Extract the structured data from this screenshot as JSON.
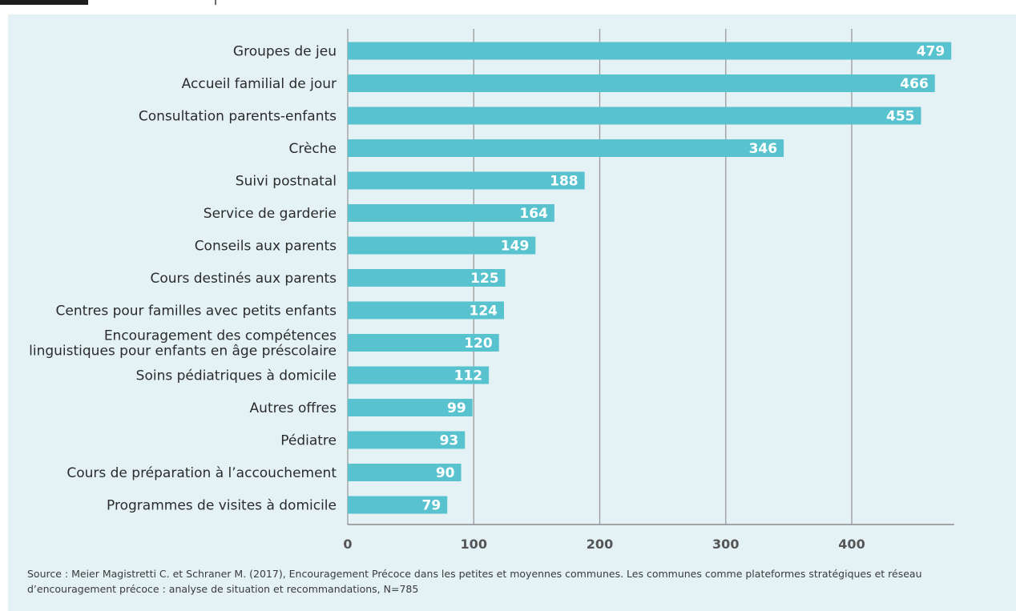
{
  "chart_data": {
    "type": "bar",
    "orientation": "horizontal",
    "categories": [
      "Groupes de jeu",
      "Accueil familial de jour",
      "Consultation parents-enfants",
      "Crèche",
      "Suivi postnatal",
      "Service de garderie",
      "Conseils aux parents",
      "Cours destinés aux parents",
      "Centres pour familles avec petits enfants",
      "Encouragement des compétences\nlinguistiques pour enfants en âge préscolaire",
      "Soins pédiatriques à domicile",
      "Autres offres",
      "Pédiatre",
      "Cours de préparation à l’accouchement",
      "Programmes de visites à domicile"
    ],
    "values": [
      479,
      466,
      455,
      346,
      188,
      164,
      149,
      125,
      124,
      120,
      112,
      99,
      93,
      90,
      79
    ],
    "xlim": [
      0,
      480
    ],
    "xticks": [
      0,
      100,
      200,
      300,
      400
    ],
    "grid": true,
    "bar_color": "#58c3cf",
    "source": "Source : Meier Magistretti C. et Schraner M. (2017), Encouragement Précoce dans les petites et moyennes communes. Les communes comme plateformes stratégiques et réseau d’encouragement précoce : analyse de situation et recommandations, N=785"
  }
}
